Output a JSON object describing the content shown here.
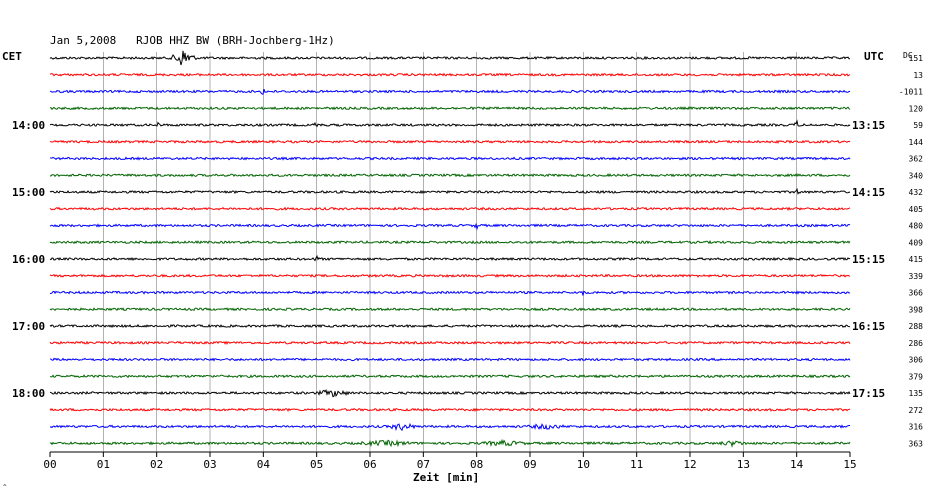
{
  "header": {
    "date": "Jan 5,2008",
    "station": "RJOB HHZ BW (BRH-Jochberg-1Hz)",
    "left_timezone": "CET",
    "right_timezone": "UTC",
    "dc_label": "DC",
    "corner_mark": "^"
  },
  "colors": {
    "trace_cycle": [
      "#000000",
      "#ff0000",
      "#0000ff",
      "#006400"
    ],
    "grid": "#808080"
  },
  "chart_data": {
    "type": "line",
    "title": "Jan 5,2008   RJOB HHZ BW (BRH-Jochberg-1Hz)",
    "xlabel": "Zeit [min]",
    "xlim": [
      0,
      15
    ],
    "x_ticks": [
      "00",
      "01",
      "02",
      "03",
      "04",
      "05",
      "06",
      "07",
      "08",
      "09",
      "10",
      "11",
      "12",
      "13",
      "14",
      "15"
    ],
    "grid": "vertical",
    "row_count": 24,
    "left_time_labels": [
      {
        "row": 4,
        "label": "14:00"
      },
      {
        "row": 8,
        "label": "15:00"
      },
      {
        "row": 12,
        "label": "16:00"
      },
      {
        "row": 16,
        "label": "17:00"
      },
      {
        "row": 20,
        "label": "18:00"
      }
    ],
    "right_time_labels": [
      {
        "row": 4,
        "label": "13:15"
      },
      {
        "row": 8,
        "label": "14:15"
      },
      {
        "row": 12,
        "label": "15:15"
      },
      {
        "row": 16,
        "label": "16:15"
      },
      {
        "row": 20,
        "label": "17:15"
      }
    ],
    "dc_offsets": [
      "151",
      "13",
      "-1011",
      "120",
      "59",
      "144",
      "362",
      "340",
      "432",
      "405",
      "480",
      "409",
      "415",
      "339",
      "366",
      "398",
      "288",
      "286",
      "306",
      "379",
      "135",
      "272",
      "316",
      "363"
    ],
    "events": [
      {
        "row": 0,
        "minute": 2.5,
        "amplitude": 9,
        "width": 0.25
      },
      {
        "row": 2,
        "minute": 4.0,
        "amplitude": 4,
        "width": 0.05
      },
      {
        "row": 4,
        "minute": 2.0,
        "amplitude": 5,
        "width": 0.05
      },
      {
        "row": 4,
        "minute": 5.0,
        "amplitude": 5,
        "width": 0.05
      },
      {
        "row": 4,
        "minute": 14.0,
        "amplitude": 5,
        "width": 0.05
      },
      {
        "row": 8,
        "minute": 14.0,
        "amplitude": 4,
        "width": 0.05
      },
      {
        "row": 10,
        "minute": 8.0,
        "amplitude": 3,
        "width": 0.05
      },
      {
        "row": 12,
        "minute": 5.0,
        "amplitude": 4,
        "width": 0.05
      },
      {
        "row": 14,
        "minute": 10.0,
        "amplitude": 3,
        "width": 0.05
      },
      {
        "row": 20,
        "minute": 5.3,
        "amplitude": 3,
        "width": 0.35
      },
      {
        "row": 22,
        "minute": 6.6,
        "amplitude": 3,
        "width": 0.3
      },
      {
        "row": 22,
        "minute": 9.3,
        "amplitude": 2,
        "width": 0.4
      },
      {
        "row": 23,
        "minute": 6.3,
        "amplitude": 2,
        "width": 0.6
      },
      {
        "row": 23,
        "minute": 8.5,
        "amplitude": 2,
        "width": 0.5
      },
      {
        "row": 23,
        "minute": 12.8,
        "amplitude": 2,
        "width": 0.3
      }
    ]
  }
}
